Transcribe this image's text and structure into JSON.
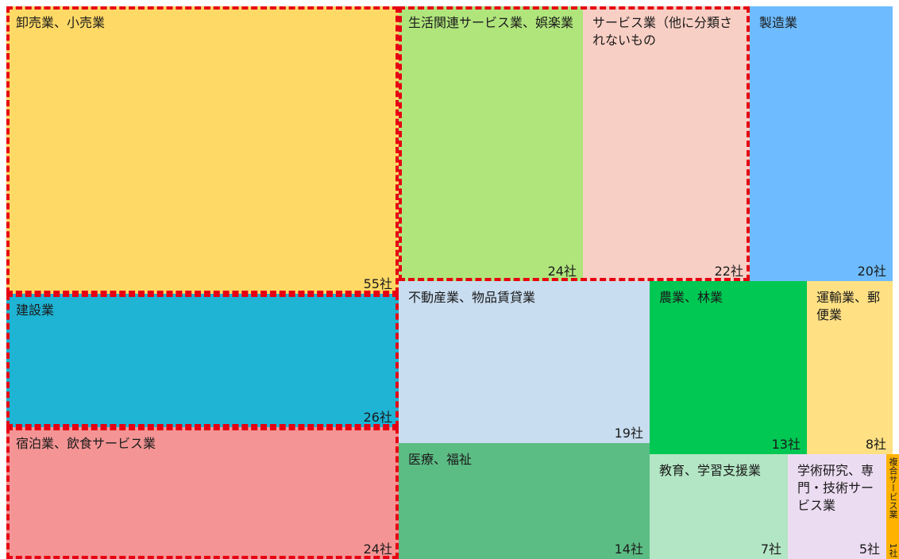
{
  "chart_data": {
    "type": "treemap",
    "unit": "社",
    "highlight_color": "#e60012",
    "items": [
      {
        "id": "t1",
        "name": "卸売業、小売業",
        "value": 55,
        "value_label": "55社",
        "color": "#ffd966",
        "highlighted": true
      },
      {
        "id": "t2",
        "name": "生活関連サービス業、娯楽業",
        "value": 24,
        "value_label": "24社",
        "color": "#b0e57c",
        "highlighted": true
      },
      {
        "id": "t3",
        "name": "サービス業（他に分類されないもの",
        "value": 22,
        "value_label": "22社",
        "color": "#f8cfc4",
        "highlighted": true
      },
      {
        "id": "t4",
        "name": "製造業",
        "value": 20,
        "value_label": "20社",
        "color": "#6ebcff",
        "highlighted": false
      },
      {
        "id": "t5",
        "name": "建設業",
        "value": 26,
        "value_label": "26社",
        "color": "#1fb3d4",
        "highlighted": true
      },
      {
        "id": "t6",
        "name": "宿泊業、飲食サービス業",
        "value": 24,
        "value_label": "24社",
        "color": "#f49494",
        "highlighted": true
      },
      {
        "id": "t7",
        "name": "不動産業、物品賃貸業",
        "value": 19,
        "value_label": "19社",
        "color": "#c9ddf0",
        "highlighted": false
      },
      {
        "id": "t8",
        "name": "医療、福祉",
        "value": 14,
        "value_label": "14社",
        "color": "#5cbd84",
        "highlighted": false
      },
      {
        "id": "t9",
        "name": "農業、林業",
        "value": 13,
        "value_label": "13社",
        "color": "#00c853",
        "highlighted": false
      },
      {
        "id": "t10",
        "name": "運輸業、郵便業",
        "value": 8,
        "value_label": "8社",
        "color": "#ffe083",
        "highlighted": false
      },
      {
        "id": "t11",
        "name": "教育、学習支援業",
        "value": 7,
        "value_label": "7社",
        "color": "#b3e6c4",
        "highlighted": false
      },
      {
        "id": "t12",
        "name": "学術研究、専門・技術サービス業",
        "value": 5,
        "value_label": "5社",
        "color": "#ecdcf2",
        "highlighted": false
      },
      {
        "id": "t13",
        "name": "複合サービス業",
        "value": 1,
        "value_label": "1社",
        "color": "#ffb300",
        "highlighted": false
      }
    ]
  }
}
